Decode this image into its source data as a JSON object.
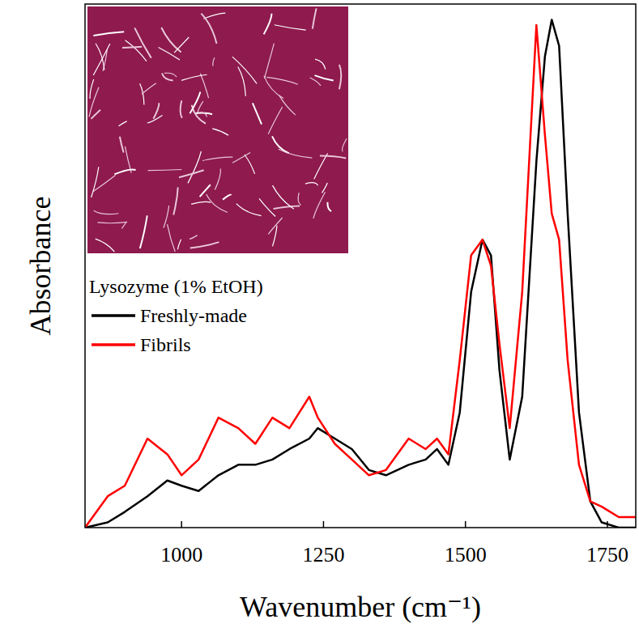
{
  "chart_data": {
    "type": "line",
    "x_label": "Wavenumber (cm⁻¹)",
    "y_label": "Absorbance",
    "legend_title": "Lysozyme (1% EtOH)",
    "legend": "left",
    "tick_labels": "x",
    "x": [
      830,
      870,
      900,
      940,
      975,
      1000,
      1030,
      1065,
      1100,
      1130,
      1160,
      1190,
      1225,
      1240,
      1270,
      1300,
      1330,
      1360,
      1400,
      1430,
      1450,
      1470,
      1490,
      1510,
      1530,
      1545,
      1560,
      1578,
      1600,
      1625,
      1640,
      1652,
      1665,
      1680,
      1700,
      1720,
      1740,
      1770,
      1800
    ],
    "series": [
      {
        "name": "Freshly-made",
        "color": "#000000",
        "values": [
          0,
          0.01,
          0.03,
          0.06,
          0.09,
          0.08,
          0.07,
          0.1,
          0.12,
          0.12,
          0.13,
          0.15,
          0.17,
          0.19,
          0.17,
          0.15,
          0.11,
          0.1,
          0.12,
          0.13,
          0.15,
          0.12,
          0.22,
          0.45,
          0.55,
          0.52,
          0.3,
          0.13,
          0.25,
          0.7,
          0.9,
          0.97,
          0.92,
          0.6,
          0.22,
          0.05,
          0.01,
          0,
          0
        ]
      },
      {
        "name": "Fibrils",
        "color": "#ff0000",
        "values": [
          0,
          0.06,
          0.08,
          0.17,
          0.14,
          0.1,
          0.13,
          0.21,
          0.19,
          0.16,
          0.21,
          0.19,
          0.25,
          0.21,
          0.16,
          0.13,
          0.1,
          0.11,
          0.17,
          0.15,
          0.17,
          0.14,
          0.32,
          0.52,
          0.55,
          0.5,
          0.35,
          0.19,
          0.45,
          0.96,
          0.75,
          0.6,
          0.55,
          0.32,
          0.12,
          0.05,
          0.04,
          0.02,
          0.02
        ]
      }
    ],
    "xlim": [
      830,
      1800
    ],
    "xticks": [
      1000,
      1250,
      1500,
      1750
    ],
    "ylim": [
      0,
      1
    ]
  }
}
